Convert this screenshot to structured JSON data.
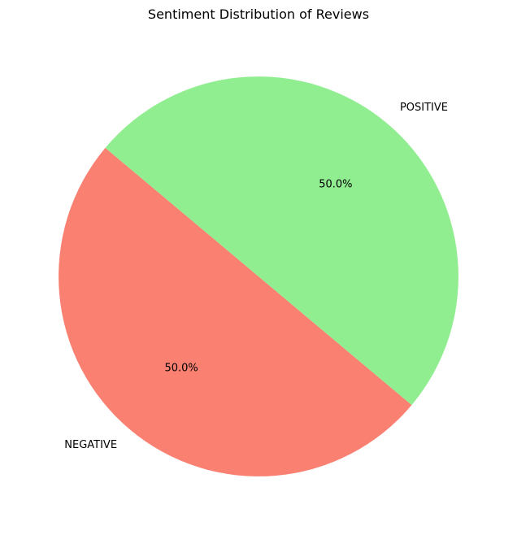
{
  "chart_data": {
    "type": "pie",
    "title": "Sentiment Distribution of Reviews",
    "categories": [
      "NEGATIVE",
      "POSITIVE"
    ],
    "values": [
      50.0,
      50.0
    ],
    "percent_labels": [
      "50.0%",
      "50.0%"
    ],
    "colors": [
      "#fa8072",
      "#90ee90"
    ],
    "start_angle_deg": 140,
    "direction": "counterclockwise"
  }
}
